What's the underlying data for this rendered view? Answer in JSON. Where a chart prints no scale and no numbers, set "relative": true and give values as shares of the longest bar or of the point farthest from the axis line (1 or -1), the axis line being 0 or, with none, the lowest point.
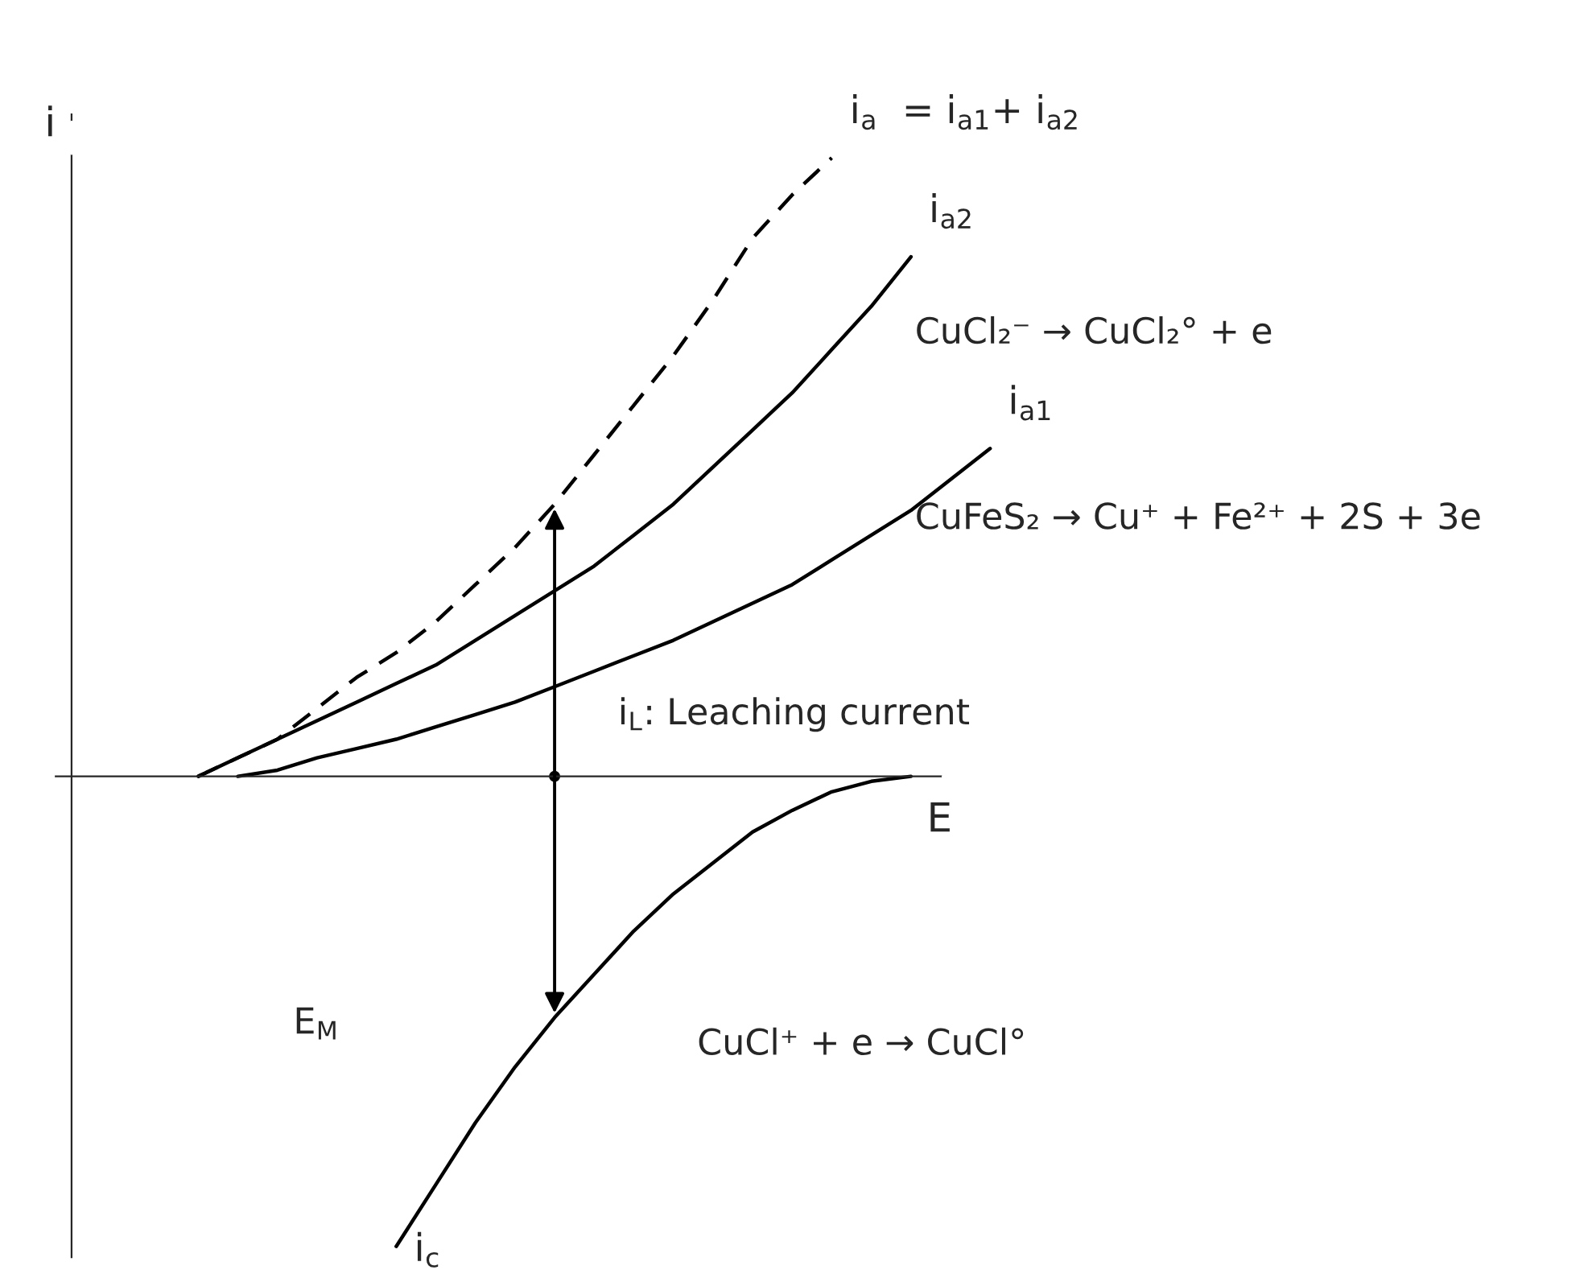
{
  "chart_data": {
    "type": "line",
    "relative": true,
    "xlabel": "E",
    "ylabel": "i",
    "categories": [
      null,
      null,
      null,
      null,
      null,
      null,
      null,
      null,
      null,
      null,
      null,
      null,
      null,
      null,
      null,
      null,
      null,
      null,
      null,
      null,
      null
    ],
    "series": [
      {
        "name": "i$_{a}$  = i$_{a1}$+ i$_{a2}$",
        "color": "#000000",
        "line_style": "dashed",
        "values": [
          0,
          0.03,
          0.06,
          0.11,
          0.16,
          0.2,
          0.25,
          0.31,
          0.37,
          0.44,
          0.52,
          0.6,
          0.68,
          0.77,
          0.87,
          0.94,
          1.0,
          null,
          null,
          null,
          null
        ]
      },
      {
        "name": "i$_{a2}$",
        "color": "#000000",
        "line_style": "solid",
        "values": [
          0,
          0.03,
          0.06,
          0.09,
          0.12,
          0.15,
          0.18,
          0.22,
          0.26,
          0.3,
          0.34,
          0.39,
          0.44,
          0.5,
          0.56,
          0.62,
          0.69,
          0.76,
          0.84,
          null,
          null
        ]
      },
      {
        "name": "i$_{a1}$",
        "color": "#000000",
        "line_style": "solid",
        "values": [
          null,
          0,
          0.01,
          0.03,
          0.045,
          0.06,
          0.08,
          0.1,
          0.12,
          0.145,
          0.17,
          0.195,
          0.22,
          0.25,
          0.28,
          0.31,
          0.35,
          0.39,
          0.43,
          0.48,
          0.53
        ]
      },
      {
        "name": "i$_{c}$",
        "color": "#000000",
        "line_style": "solid",
        "values": [
          null,
          null,
          null,
          null,
          null,
          -0.76,
          -0.66,
          -0.56,
          -0.47,
          -0.39,
          -0.32,
          -0.25,
          -0.19,
          -0.14,
          -0.09,
          -0.055,
          -0.025,
          -0.008,
          0,
          null,
          null
        ]
      }
    ],
    "annotations": [
      "CuCl₂⁻ → CuCl₂° + e",
      "CuFeS₂ → Cu⁺ + Fe²⁺ + 2S + 3e",
      "i$_{L}$: Leaching current",
      "E$_{M}$",
      "CuCl⁺ + e → CuCl°"
    ]
  }
}
